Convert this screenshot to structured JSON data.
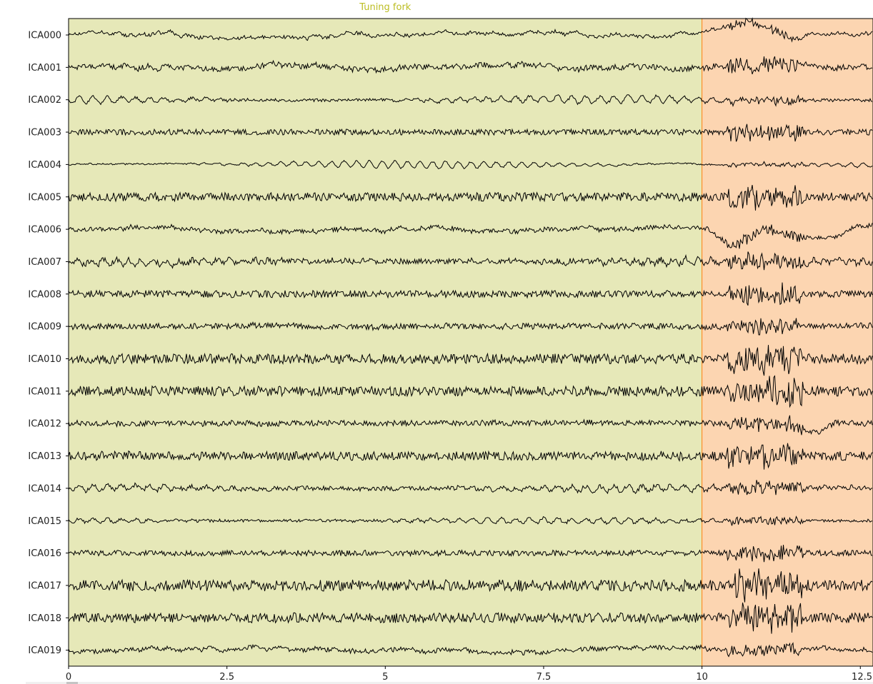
{
  "chart_data": {
    "type": "line",
    "title": "",
    "xlabel": "",
    "ylabel": "",
    "xlim": [
      0,
      12.7
    ],
    "x_ticks": [
      0,
      2.5,
      5,
      7.5,
      10,
      12.5
    ],
    "x_tick_labels": [
      "0",
      "2.5",
      "5",
      "7.5",
      "10",
      "12.5"
    ],
    "channels": [
      "ICA000",
      "ICA001",
      "ICA002",
      "ICA003",
      "ICA004",
      "ICA005",
      "ICA006",
      "ICA007",
      "ICA008",
      "ICA009",
      "ICA010",
      "ICA011",
      "ICA012",
      "ICA013",
      "ICA014",
      "ICA015",
      "ICA016",
      "ICA017",
      "ICA018",
      "ICA019"
    ],
    "annotations": [
      {
        "label": "Tuning fork",
        "onset": 0,
        "end": 10,
        "color": "#e6e8b8",
        "label_color": "#bcbd22"
      },
      {
        "label": "",
        "onset": 10,
        "end": 12.7,
        "color": "#fcd5b1",
        "label_color": "#ff7f0e"
      }
    ],
    "line_color": "#000000",
    "grid": false,
    "legend": "none"
  }
}
